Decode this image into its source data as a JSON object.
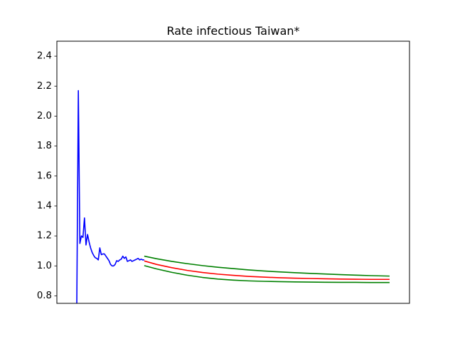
{
  "chart_data": {
    "type": "line",
    "title": "Rate infectious Taiwan*",
    "xlabel": "",
    "ylabel": "",
    "x_ticks_visible": false,
    "xlim": [
      -5,
      225
    ],
    "ylim": [
      0.75,
      2.5
    ],
    "y_ticks": [
      0.8,
      1.0,
      1.2,
      1.4,
      1.6,
      1.8,
      2.0,
      2.2,
      2.4
    ],
    "y_tick_labels": [
      "0.8",
      "1.0",
      "1.2",
      "1.4",
      "1.6",
      "1.8",
      "2.0",
      "2.2",
      "2.4"
    ],
    "grid": false,
    "legend": "none",
    "series": [
      {
        "color": "#0000ff",
        "x": [
          8,
          9,
          10,
          11,
          12,
          13,
          14,
          15,
          16,
          17,
          18,
          19,
          20,
          21,
          22,
          23,
          24,
          25,
          26,
          27,
          28,
          29,
          30,
          31,
          32,
          33,
          34,
          35,
          36,
          37,
          38,
          39,
          40,
          41,
          42,
          43,
          44,
          45,
          46,
          47,
          48,
          49,
          50,
          51,
          52
        ],
        "y": [
          0.75,
          2.17,
          1.15,
          1.2,
          1.19,
          1.32,
          1.14,
          1.21,
          1.16,
          1.12,
          1.09,
          1.07,
          1.055,
          1.05,
          1.04,
          1.12,
          1.075,
          1.08,
          1.08,
          1.065,
          1.05,
          1.035,
          1.01,
          1.0,
          1.0,
          1.01,
          1.035,
          1.03,
          1.04,
          1.045,
          1.065,
          1.05,
          1.06,
          1.03,
          1.035,
          1.04,
          1.03,
          1.035,
          1.04,
          1.045,
          1.05,
          1.04,
          1.045,
          1.04,
          1.04
        ]
      },
      {
        "color": "#ff0000",
        "x": [
          52,
          60,
          70,
          80,
          90,
          100,
          110,
          120,
          130,
          140,
          150,
          160,
          170,
          180,
          190,
          200,
          212
        ],
        "y": [
          1.033,
          1.01,
          0.988,
          0.97,
          0.956,
          0.945,
          0.937,
          0.93,
          0.925,
          0.921,
          0.918,
          0.916,
          0.914,
          0.912,
          0.911,
          0.91,
          0.91
        ]
      },
      {
        "color": "#008000",
        "x": [
          52,
          60,
          70,
          80,
          90,
          100,
          110,
          120,
          130,
          140,
          150,
          160,
          170,
          180,
          190,
          200,
          212
        ],
        "y": [
          1.065,
          1.048,
          1.03,
          1.015,
          1.002,
          0.991,
          0.982,
          0.973,
          0.966,
          0.96,
          0.955,
          0.95,
          0.946,
          0.942,
          0.938,
          0.935,
          0.932
        ]
      },
      {
        "color": "#008000",
        "x": [
          52,
          60,
          70,
          80,
          90,
          100,
          110,
          120,
          130,
          140,
          150,
          160,
          170,
          180,
          190,
          200,
          212
        ],
        "y": [
          1.002,
          0.98,
          0.957,
          0.938,
          0.923,
          0.912,
          0.905,
          0.9,
          0.897,
          0.895,
          0.893,
          0.892,
          0.891,
          0.89,
          0.89,
          0.889,
          0.889
        ]
      }
    ]
  }
}
